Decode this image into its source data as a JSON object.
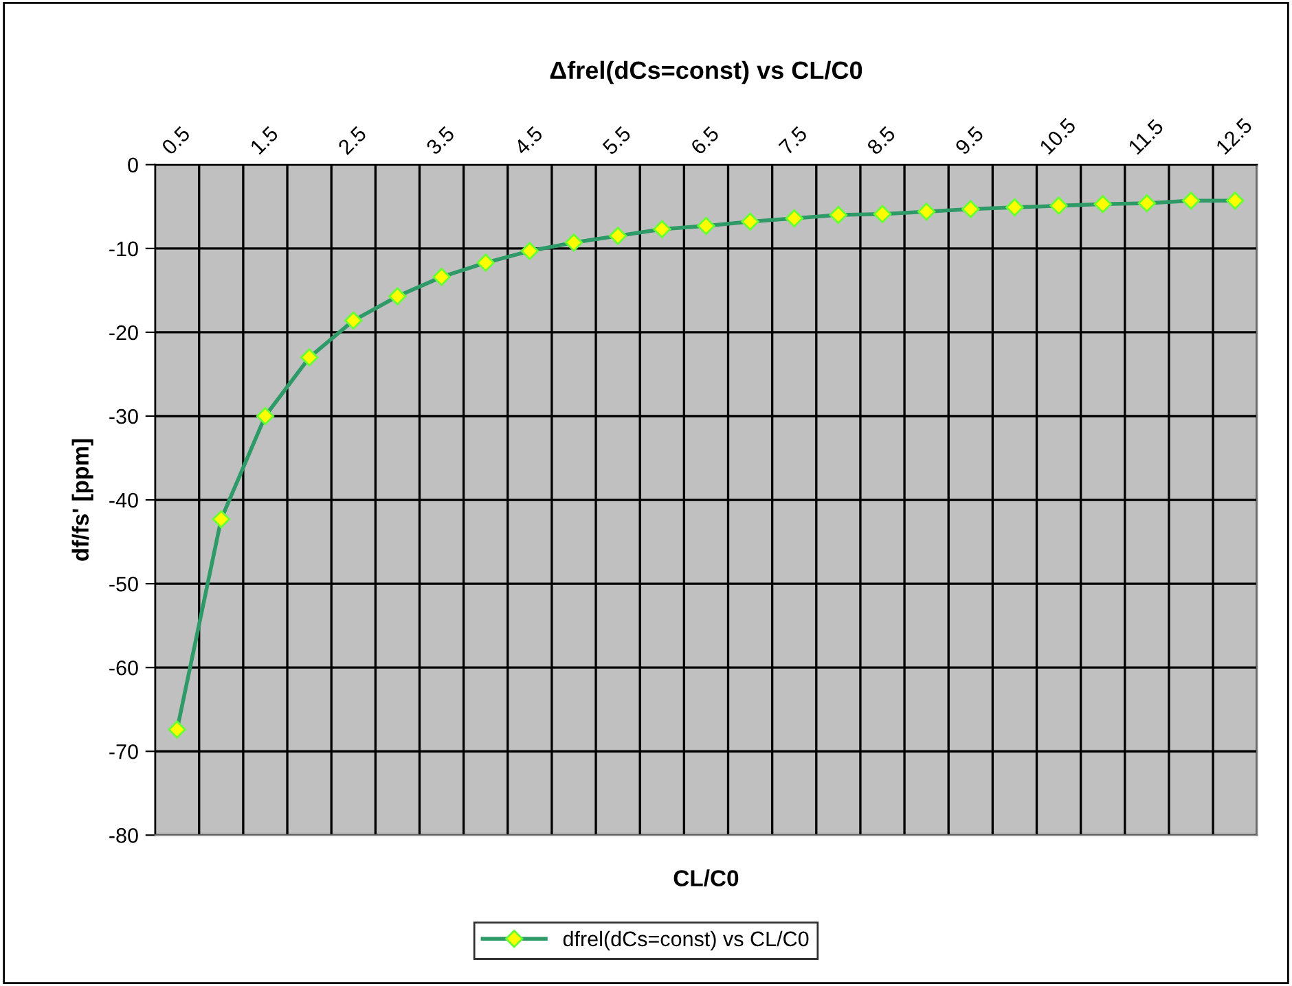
{
  "chart_data": {
    "type": "line",
    "title": "Δfrel(dCs=const) vs CL/C0",
    "xlabel": "CL/C0",
    "ylabel": "df/fs' [ppm]",
    "categories": [
      "0.5",
      null,
      "1.5",
      null,
      "2.5",
      null,
      "3.5",
      null,
      "4.5",
      null,
      "5.5",
      null,
      "6.5",
      null,
      "7.5",
      null,
      "8.5",
      null,
      "9.5",
      null,
      "10.5",
      null,
      "11.5",
      null,
      "12.5"
    ],
    "series": [
      {
        "name": "dfrel(dCs=const) vs CL/C0",
        "color": "#2e9a68",
        "values": [
          -67.4,
          -42.3,
          -30.0,
          -23.0,
          -18.6,
          -15.7,
          -13.4,
          -11.7,
          -10.3,
          -9.3,
          -8.5,
          -7.7,
          -7.3,
          -6.8,
          -6.4,
          -6.0,
          -5.9,
          -5.6,
          -5.3,
          -5.1,
          -4.9,
          -4.7,
          -4.6,
          -4.3,
          -4.3
        ]
      }
    ],
    "ylim": [
      -80,
      0
    ],
    "yticks": [
      -80,
      -70,
      -60,
      -50,
      -40,
      -30,
      -20,
      -10,
      0
    ],
    "grid": true,
    "legend": "bottom",
    "marker": "diamond",
    "line_style": "solid"
  }
}
